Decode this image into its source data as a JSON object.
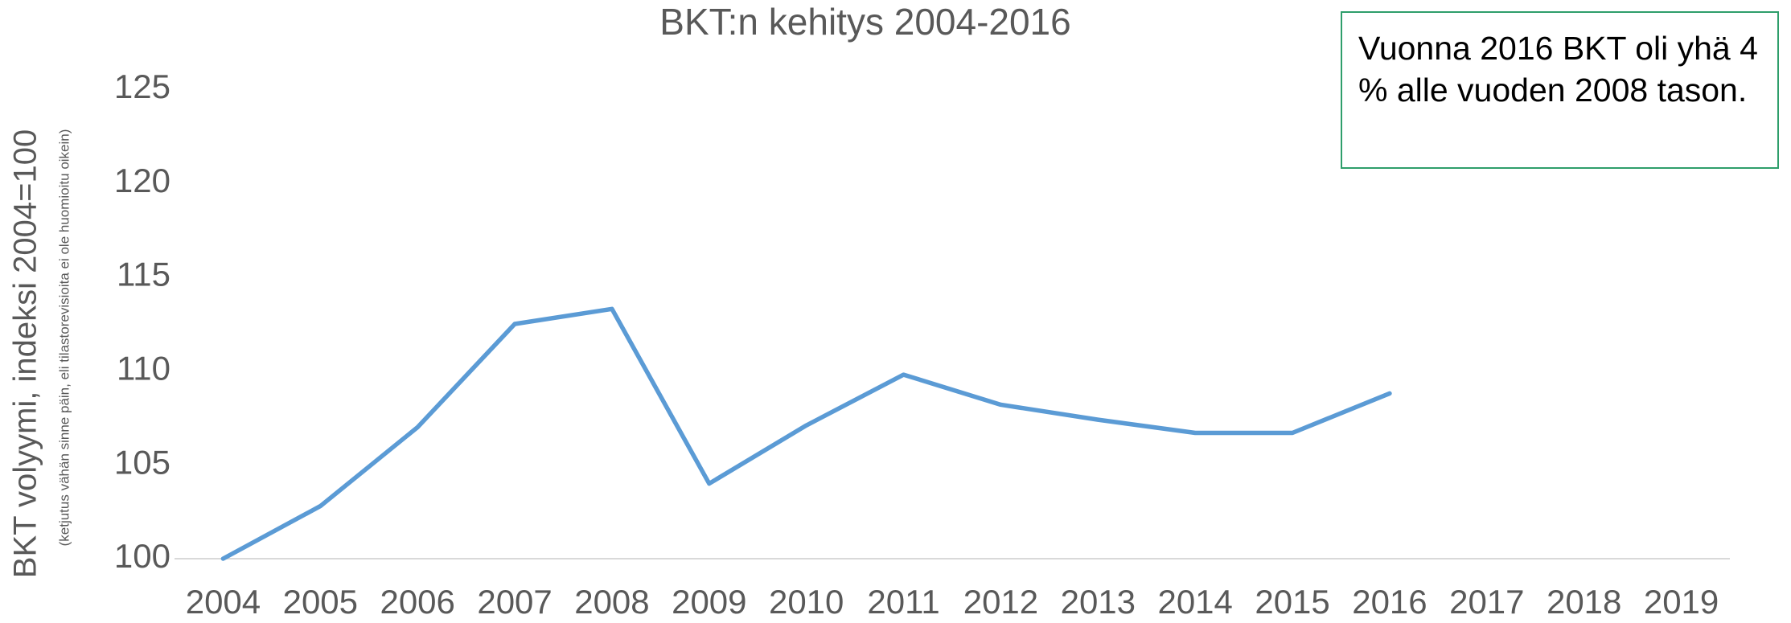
{
  "chart_data": {
    "type": "line",
    "title": "BKT:n kehitys 2004-2016",
    "ylabel": "BKT volyymi, indeksi 2004=100",
    "ylabel_note": "(ketjutus vähän sinne päin, eli tilastorevisioita ei ole huomioitu oikein)",
    "annotation": "Vuonna 2016 BKT oli yhä 4 % alle vuoden 2008 tason.",
    "categories": [
      "2004",
      "2005",
      "2006",
      "2007",
      "2008",
      "2009",
      "2010",
      "2011",
      "2012",
      "2013",
      "2014",
      "2015",
      "2016",
      "2017",
      "2018",
      "2019"
    ],
    "series": [
      {
        "name": "BKT",
        "color": "#5b9bd5",
        "values": [
          100,
          102.8,
          107,
          112.5,
          113.3,
          104,
          107.1,
          109.8,
          108.2,
          107.4,
          106.7,
          106.7,
          108.8,
          null,
          null,
          null
        ]
      }
    ],
    "ylim": [
      100,
      125
    ],
    "yticks": [
      100,
      105,
      110,
      115,
      120,
      125
    ],
    "grid": false
  }
}
